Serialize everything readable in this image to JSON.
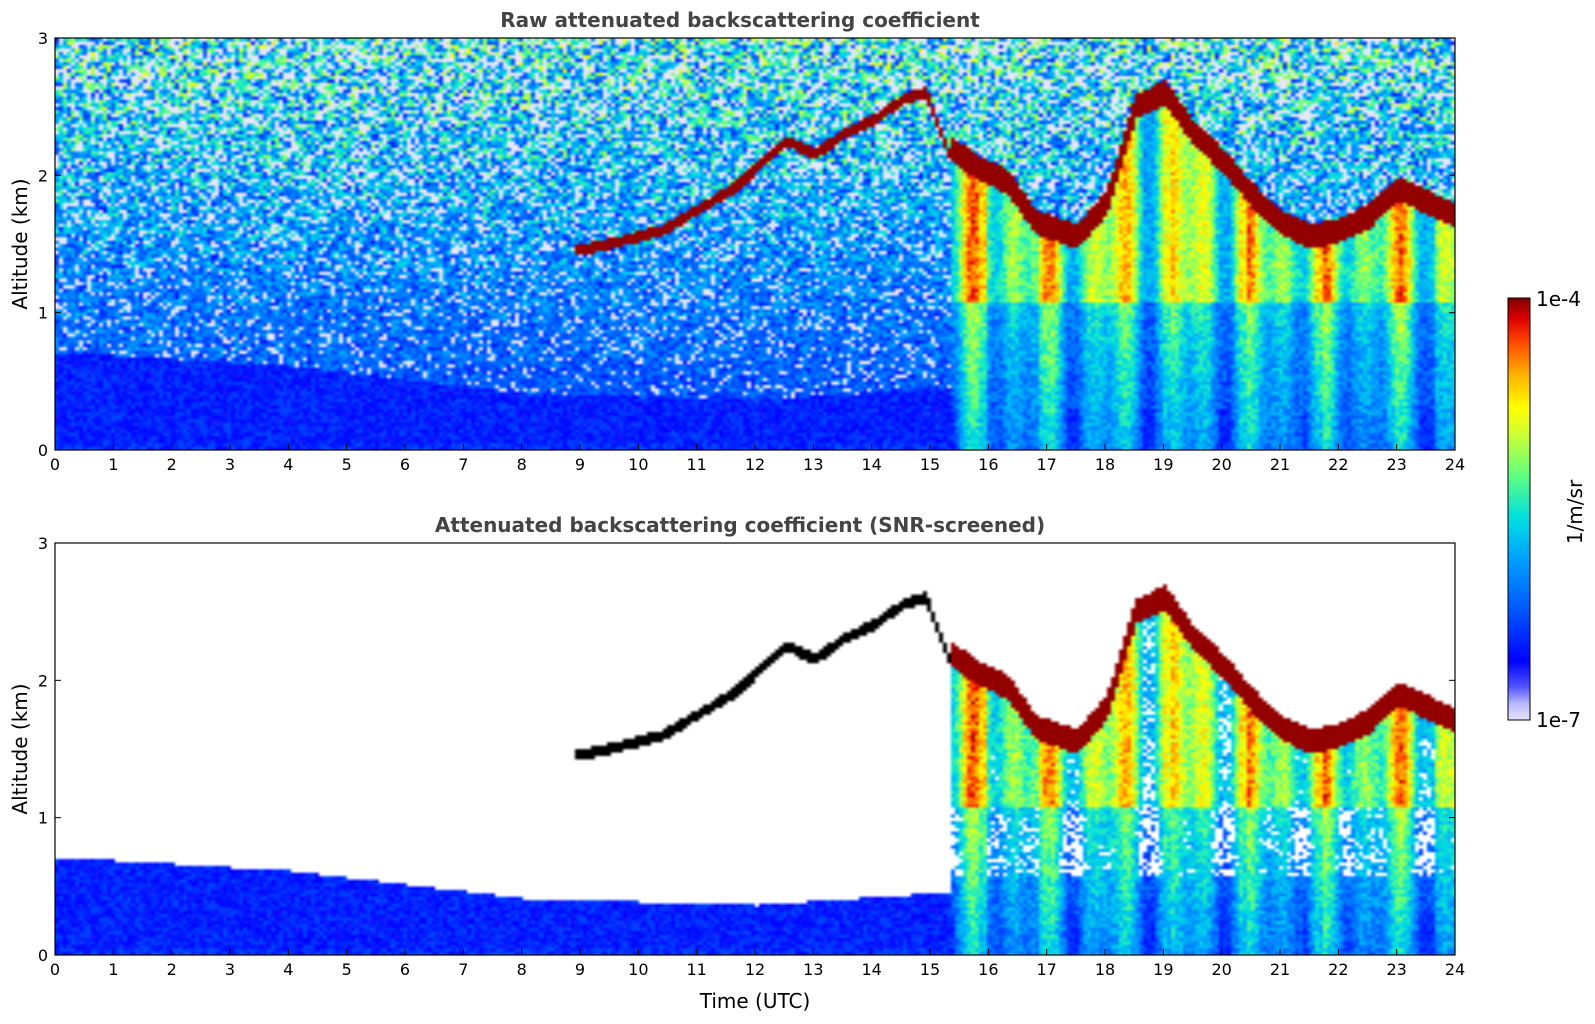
{
  "chart_data": [
    {
      "type": "heatmap",
      "id": "raw",
      "title": "Raw attenuated backscattering coefficient",
      "xlabel": "",
      "ylabel": "Altitude (km)",
      "xlim": [
        0,
        24
      ],
      "ylim": [
        0,
        3
      ],
      "xticks": [
        "0",
        "1",
        "2",
        "3",
        "4",
        "5",
        "6",
        "7",
        "8",
        "9",
        "10",
        "11",
        "12",
        "13",
        "14",
        "15",
        "16",
        "17",
        "18",
        "19",
        "20",
        "21",
        "22",
        "23",
        "24"
      ],
      "yticks": [
        "0",
        "1",
        "2",
        "3"
      ],
      "screened": false
    },
    {
      "type": "heatmap",
      "id": "snr",
      "title": "Attenuated backscattering coefficient (SNR-screened)",
      "xlabel": "Time (UTC)",
      "ylabel": "Altitude (km)",
      "xlim": [
        0,
        24
      ],
      "ylim": [
        0,
        3
      ],
      "xticks": [
        "0",
        "1",
        "2",
        "3",
        "4",
        "5",
        "6",
        "7",
        "8",
        "9",
        "10",
        "11",
        "12",
        "13",
        "14",
        "15",
        "16",
        "17",
        "18",
        "19",
        "20",
        "21",
        "22",
        "23",
        "24"
      ],
      "yticks": [
        "0",
        "1",
        "2",
        "3"
      ],
      "screened": true
    }
  ],
  "field": {
    "cloud_base_km": [
      [
        8.9,
        1.4
      ],
      [
        9.5,
        1.45
      ],
      [
        10.4,
        1.55
      ],
      [
        11.0,
        1.7
      ],
      [
        11.6,
        1.85
      ],
      [
        12.0,
        2.0
      ],
      [
        12.5,
        2.2
      ],
      [
        13.0,
        2.1
      ],
      [
        13.5,
        2.25
      ],
      [
        14.0,
        2.35
      ],
      [
        14.5,
        2.5
      ],
      [
        14.9,
        2.55
      ],
      [
        15.3,
        2.1
      ],
      [
        15.8,
        1.95
      ],
      [
        16.3,
        1.85
      ],
      [
        16.8,
        1.55
      ],
      [
        17.5,
        1.45
      ],
      [
        18.0,
        1.7
      ],
      [
        18.5,
        2.4
      ],
      [
        19.0,
        2.5
      ],
      [
        19.5,
        2.2
      ],
      [
        20.0,
        2.0
      ],
      [
        20.5,
        1.75
      ],
      [
        21.0,
        1.55
      ],
      [
        21.5,
        1.45
      ],
      [
        22.0,
        1.5
      ],
      [
        22.5,
        1.6
      ],
      [
        23.0,
        1.8
      ],
      [
        23.5,
        1.7
      ],
      [
        24.0,
        1.6
      ]
    ],
    "dense_layer_km": 1.05,
    "boundary_layer_top_km": [
      [
        0,
        0.7
      ],
      [
        4,
        0.6
      ],
      [
        8,
        0.4
      ],
      [
        12,
        0.35
      ],
      [
        15.5,
        0.45
      ],
      [
        19,
        0.5
      ],
      [
        24,
        0.5
      ]
    ]
  },
  "colorbar": {
    "label": "1/m/sr",
    "max_label": "1e-4",
    "min_label": "1e-7",
    "colors": [
      "#e6e6fa",
      "#b4b4ff",
      "#5050ff",
      "#0000ff",
      "#0050ff",
      "#00a0ff",
      "#00e0e0",
      "#60ff80",
      "#d0ff30",
      "#ffff00",
      "#ffb000",
      "#ff5000",
      "#e00000",
      "#800000"
    ]
  }
}
